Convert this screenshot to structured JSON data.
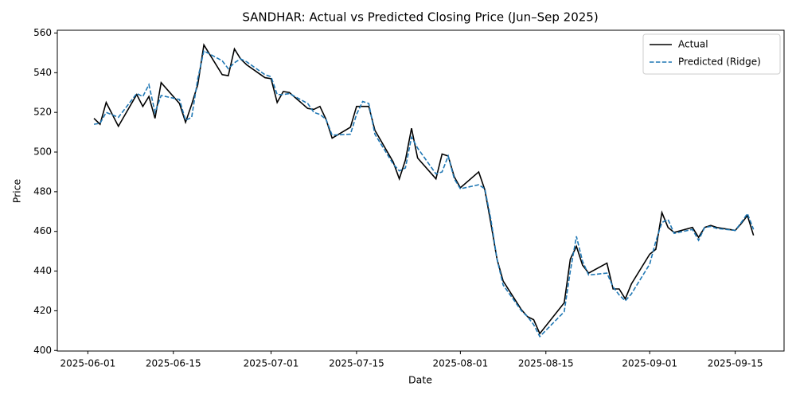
{
  "chart_data": {
    "type": "line",
    "title": "SANDHAR: Actual vs Predicted Closing Price (Jun–Sep 2025)",
    "x_label": "Date",
    "y_label": "Price",
    "x": [
      "2025-06-02",
      "2025-06-03",
      "2025-06-04",
      "2025-06-06",
      "2025-06-09",
      "2025-06-10",
      "2025-06-11",
      "2025-06-12",
      "2025-06-13",
      "2025-06-16",
      "2025-06-17",
      "2025-06-18",
      "2025-06-19",
      "2025-06-20",
      "2025-06-23",
      "2025-06-24",
      "2025-06-25",
      "2025-06-26",
      "2025-06-27",
      "2025-06-30",
      "2025-07-01",
      "2025-07-02",
      "2025-07-03",
      "2025-07-04",
      "2025-07-07",
      "2025-07-08",
      "2025-07-09",
      "2025-07-10",
      "2025-07-11",
      "2025-07-14",
      "2025-07-15",
      "2025-07-16",
      "2025-07-17",
      "2025-07-18",
      "2025-07-21",
      "2025-07-22",
      "2025-07-23",
      "2025-07-24",
      "2025-07-25",
      "2025-07-28",
      "2025-07-29",
      "2025-07-30",
      "2025-07-31",
      "2025-08-01",
      "2025-08-04",
      "2025-08-05",
      "2025-08-06",
      "2025-08-07",
      "2025-08-08",
      "2025-08-11",
      "2025-08-12",
      "2025-08-13",
      "2025-08-14",
      "2025-08-18",
      "2025-08-19",
      "2025-08-20",
      "2025-08-21",
      "2025-08-22",
      "2025-08-25",
      "2025-08-26",
      "2025-08-27",
      "2025-08-28",
      "2025-08-29",
      "2025-09-01",
      "2025-09-02",
      "2025-09-03",
      "2025-09-04",
      "2025-09-05",
      "2025-09-08",
      "2025-09-09",
      "2025-09-10",
      "2025-09-11",
      "2025-09-12",
      "2025-09-15",
      "2025-09-16",
      "2025-09-17",
      "2025-09-18"
    ],
    "series": [
      {
        "name": "Actual",
        "color": "#000000",
        "dash": false,
        "values": [
          517,
          514,
          525,
          513,
          529,
          523,
          528,
          517,
          535,
          524.5,
          515,
          524,
          534,
          554,
          539,
          538.5,
          552,
          547,
          544,
          537.5,
          537,
          525,
          530.5,
          530,
          522,
          521.5,
          523,
          516.5,
          507,
          512.5,
          523,
          523,
          523,
          511,
          495,
          486.5,
          496,
          512,
          497,
          486.5,
          499,
          498,
          487.5,
          482,
          490,
          481,
          464,
          446,
          435,
          420.5,
          417,
          415.5,
          408.5,
          424,
          446,
          452.5,
          443,
          439,
          444,
          431,
          431,
          426,
          433.5,
          448.5,
          451,
          469.5,
          462,
          459.5,
          462,
          457,
          462,
          463,
          462,
          460.5,
          464,
          468,
          458
        ]
      },
      {
        "name": "Predicted (Ridge)",
        "color": "#1f77b4",
        "dash": true,
        "values": [
          514,
          514.5,
          520,
          517.5,
          529.5,
          528,
          534,
          520,
          528.5,
          526.5,
          516,
          517.5,
          537,
          551,
          546,
          542,
          545,
          547,
          545.5,
          539,
          538,
          529,
          529,
          529.5,
          524.5,
          520,
          519,
          516.5,
          508.5,
          509,
          519,
          525.5,
          524.5,
          509,
          494,
          490.5,
          492,
          507.5,
          502,
          489,
          490,
          498,
          486.5,
          481.5,
          483.5,
          481.5,
          466,
          446,
          433,
          420,
          417,
          413,
          407,
          419.5,
          440,
          457.5,
          445,
          438,
          439,
          432,
          428,
          425,
          428.5,
          443.5,
          455,
          464.5,
          466,
          459,
          461,
          455.5,
          462,
          462.5,
          461.5,
          460.5,
          464.5,
          469,
          461
        ]
      }
    ],
    "xlim": [
      "2025-05-27",
      "2025-09-23"
    ],
    "xticks": [
      "2025-06-01",
      "2025-06-15",
      "2025-07-01",
      "2025-07-15",
      "2025-08-01",
      "2025-08-15",
      "2025-09-01",
      "2025-09-15"
    ],
    "ylim": [
      399.7,
      561.4
    ],
    "yticks": [
      400,
      420,
      440,
      460,
      480,
      500,
      520,
      540,
      560
    ],
    "grid": false,
    "legend": "upper right"
  }
}
